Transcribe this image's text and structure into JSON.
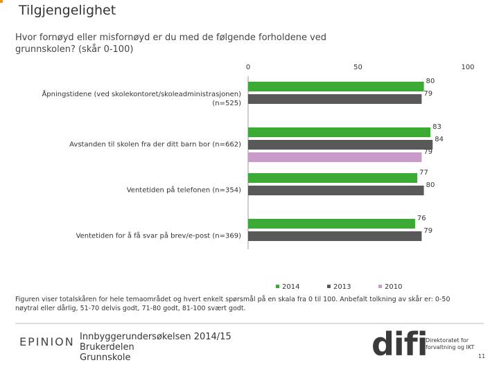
{
  "chart_data": {
    "type": "bar",
    "orientation": "horizontal",
    "title": "Tilgjengelighet",
    "subtitle": "Hvor fornøyd eller misfornøyd er du med de følgende forholdene ved grunnskolen? (skår 0-100)",
    "categories": [
      "Åpningstidene (ved skolekontoret/skoleadministrasjonen) (n=525)",
      "Avstanden til skolen fra der ditt barn bor (n=662)",
      "Ventetiden på telefonen (n=354)",
      "Ventetiden for å få svar på brev/e-post (n=369)"
    ],
    "series": [
      {
        "name": "2014",
        "color": "#3aaa35",
        "values": [
          80,
          83,
          77,
          76
        ]
      },
      {
        "name": "2013",
        "color": "#595959",
        "values": [
          79,
          84,
          80,
          79
        ]
      },
      {
        "name": "2010",
        "color": "#c89bc8",
        "values": [
          null,
          79,
          null,
          null
        ]
      }
    ],
    "xlim": [
      0,
      100
    ],
    "xticks": [
      0,
      50,
      100
    ],
    "note": "Figuren viser totalskåren for hele temaområdet og hvert enkelt spørsmål på en skala fra 0 til 100. Anbefalt tolkning av skår er: 0-50 nøytral eller dårlig, 51-70 delvis godt, 71-80 godt, 81-100 svært godt."
  },
  "footer": {
    "company": "EPINION",
    "lines": [
      "Innbyggerundersøkelsen 2014/15",
      "Brukerdelen",
      "Grunnskole"
    ],
    "logo": "difi",
    "logo_text": [
      "Direktoratet for",
      "forvaltning og IKT"
    ],
    "page": "11"
  }
}
